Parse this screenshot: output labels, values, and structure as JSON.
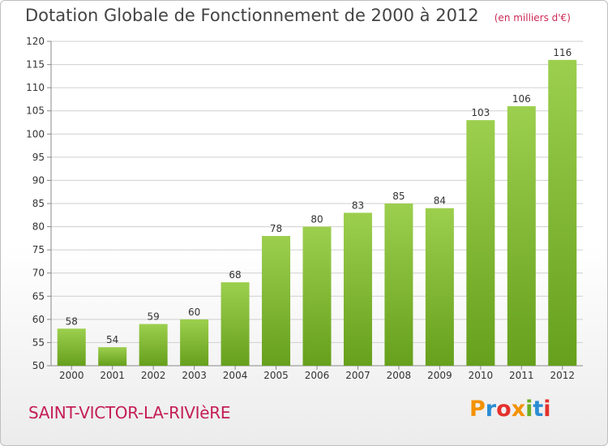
{
  "chart_data": {
    "type": "bar",
    "title": "Dotation Globale de Fonctionnement de 2000 à 2012",
    "unit_label": "(en milliers d'€)",
    "categories": [
      "2000",
      "2001",
      "2002",
      "2003",
      "2004",
      "2005",
      "2006",
      "2007",
      "2008",
      "2009",
      "2010",
      "2011",
      "2012"
    ],
    "values": [
      58,
      54,
      59,
      60,
      68,
      78,
      80,
      83,
      85,
      84,
      103,
      106,
      116
    ],
    "ylim": [
      50,
      120
    ],
    "yticks": [
      50,
      55,
      60,
      65,
      70,
      75,
      80,
      85,
      90,
      95,
      100,
      105,
      110,
      115,
      120
    ],
    "grid": true,
    "xlabel": "",
    "ylabel": "",
    "bar_color": "#8cc63f"
  },
  "footer": {
    "commune": "SAINT-VICTOR-LA-RIVIèRE",
    "logo_letters": [
      "P",
      "r",
      "o",
      "x",
      "i",
      "t",
      "i"
    ],
    "logo_colors": [
      "#f39200",
      "#2a8dd4",
      "#e4312b",
      "#f39200",
      "#6ab023",
      "#2a8dd4",
      "#e4312b"
    ]
  }
}
